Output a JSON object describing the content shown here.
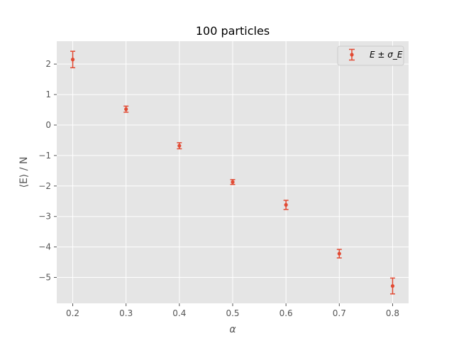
{
  "chart_data": {
    "type": "scatter",
    "title": "100 particles",
    "xlabel": "α",
    "ylabel": "⟨E⟩ / N",
    "xlim": [
      0.17,
      0.83
    ],
    "ylim": [
      -5.85,
      2.75
    ],
    "xticks": [
      0.2,
      0.3,
      0.4,
      0.5,
      0.6,
      0.7,
      0.8
    ],
    "xtick_labels": [
      "0.2",
      "0.3",
      "0.4",
      "0.5",
      "0.6",
      "0.7",
      "0.8"
    ],
    "yticks": [
      2,
      1,
      0,
      -1,
      -2,
      -3,
      -4,
      -5
    ],
    "ytick_labels": [
      "2",
      "1",
      "0",
      "−1",
      "−2",
      "−3",
      "−4",
      "−5"
    ],
    "grid": true,
    "legend_position": "top-right",
    "series": [
      {
        "name": "E ± σ_E",
        "color": "#e24a33",
        "x": [
          0.2,
          0.3,
          0.4,
          0.5,
          0.6,
          0.7,
          0.8
        ],
        "y": [
          2.15,
          0.52,
          -0.68,
          -1.87,
          -2.62,
          -4.22,
          -5.28
        ],
        "yerr": [
          0.27,
          0.1,
          0.1,
          0.08,
          0.15,
          0.14,
          0.26
        ]
      }
    ],
    "colors": {
      "plot_background": "#e5e5e5",
      "grid": "#ffffff",
      "tick_text": "#555555",
      "legend_background": "#e5e5e5",
      "legend_border": "#cccccc"
    }
  }
}
